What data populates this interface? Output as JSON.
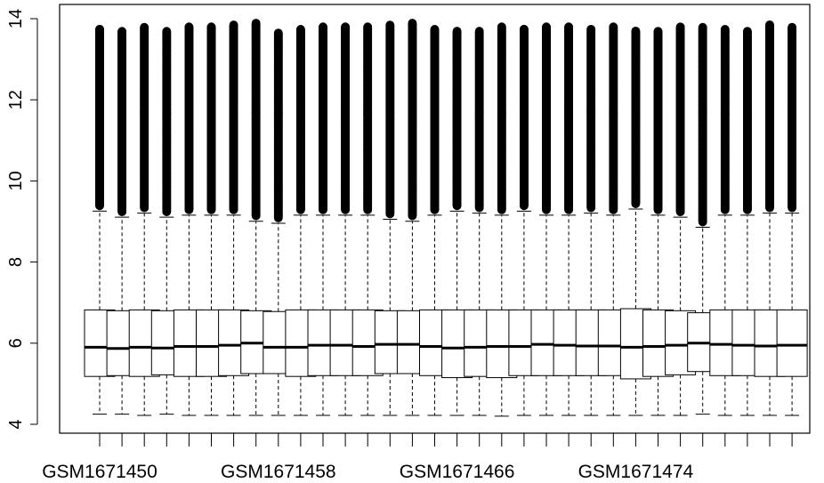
{
  "chart_data": {
    "type": "boxplot",
    "title": "",
    "xlabel": "",
    "ylabel": "",
    "ylim": [
      4,
      14
    ],
    "yticks": [
      4,
      6,
      8,
      10,
      12,
      14
    ],
    "ytick_labels": [
      "4",
      "6",
      "8",
      "10",
      "12",
      "14"
    ],
    "xtick_labels_shown": [
      "GSM1671450",
      "GSM1671458",
      "GSM1671466",
      "GSM1671474"
    ],
    "xtick_label_every": 8,
    "grid": false,
    "color": "#000000",
    "box_fill": "#ffffff",
    "boxes": [
      {
        "q1": 5.18,
        "median": 5.9,
        "q3": 6.82,
        "whisker_low": 4.25,
        "whisker_high": 9.3,
        "outlier_max": 13.75
      },
      {
        "q1": 5.2,
        "median": 5.87,
        "q3": 6.8,
        "whisker_low": 4.25,
        "whisker_high": 9.15,
        "outlier_max": 13.7
      },
      {
        "q1": 5.18,
        "median": 5.9,
        "q3": 6.82,
        "whisker_low": 4.22,
        "whisker_high": 9.25,
        "outlier_max": 13.8
      },
      {
        "q1": 5.22,
        "median": 5.88,
        "q3": 6.8,
        "whisker_low": 4.25,
        "whisker_high": 9.15,
        "outlier_max": 13.7
      },
      {
        "q1": 5.18,
        "median": 5.92,
        "q3": 6.82,
        "whisker_low": 4.22,
        "whisker_high": 9.2,
        "outlier_max": 13.8
      },
      {
        "q1": 5.18,
        "median": 5.92,
        "q3": 6.82,
        "whisker_low": 4.22,
        "whisker_high": 9.2,
        "outlier_max": 13.8
      },
      {
        "q1": 5.2,
        "median": 5.95,
        "q3": 6.82,
        "whisker_low": 4.22,
        "whisker_high": 9.2,
        "outlier_max": 13.85
      },
      {
        "q1": 5.25,
        "median": 6.0,
        "q3": 6.8,
        "whisker_low": 4.22,
        "whisker_high": 9.05,
        "outlier_max": 13.9
      },
      {
        "q1": 5.25,
        "median": 5.9,
        "q3": 6.78,
        "whisker_low": 4.22,
        "whisker_high": 9.0,
        "outlier_max": 13.65
      },
      {
        "q1": 5.18,
        "median": 5.9,
        "q3": 6.82,
        "whisker_low": 4.22,
        "whisker_high": 9.2,
        "outlier_max": 13.75
      },
      {
        "q1": 5.2,
        "median": 5.95,
        "q3": 6.82,
        "whisker_low": 4.22,
        "whisker_high": 9.2,
        "outlier_max": 13.8
      },
      {
        "q1": 5.2,
        "median": 5.95,
        "q3": 6.82,
        "whisker_low": 4.22,
        "whisker_high": 9.2,
        "outlier_max": 13.8
      },
      {
        "q1": 5.2,
        "median": 5.92,
        "q3": 6.82,
        "whisker_low": 4.22,
        "whisker_high": 9.2,
        "outlier_max": 13.8
      },
      {
        "q1": 5.25,
        "median": 5.97,
        "q3": 6.8,
        "whisker_low": 4.22,
        "whisker_high": 9.1,
        "outlier_max": 13.85
      },
      {
        "q1": 5.25,
        "median": 5.97,
        "q3": 6.8,
        "whisker_low": 4.22,
        "whisker_high": 9.05,
        "outlier_max": 13.9
      },
      {
        "q1": 5.2,
        "median": 5.92,
        "q3": 6.82,
        "whisker_low": 4.22,
        "whisker_high": 9.2,
        "outlier_max": 13.75
      },
      {
        "q1": 5.15,
        "median": 5.88,
        "q3": 6.82,
        "whisker_low": 4.22,
        "whisker_high": 9.3,
        "outlier_max": 13.7
      },
      {
        "q1": 5.18,
        "median": 5.9,
        "q3": 6.82,
        "whisker_low": 4.22,
        "whisker_high": 9.25,
        "outlier_max": 13.7
      },
      {
        "q1": 5.15,
        "median": 5.92,
        "q3": 6.82,
        "whisker_low": 4.2,
        "whisker_high": 9.2,
        "outlier_max": 13.8
      },
      {
        "q1": 5.2,
        "median": 5.92,
        "q3": 6.82,
        "whisker_low": 4.22,
        "whisker_high": 9.3,
        "outlier_max": 13.75
      },
      {
        "q1": 5.2,
        "median": 5.97,
        "q3": 6.82,
        "whisker_low": 4.22,
        "whisker_high": 9.2,
        "outlier_max": 13.8
      },
      {
        "q1": 5.2,
        "median": 5.95,
        "q3": 6.82,
        "whisker_low": 4.22,
        "whisker_high": 9.2,
        "outlier_max": 13.8
      },
      {
        "q1": 5.2,
        "median": 5.93,
        "q3": 6.82,
        "whisker_low": 4.22,
        "whisker_high": 9.25,
        "outlier_max": 13.75
      },
      {
        "q1": 5.2,
        "median": 5.93,
        "q3": 6.82,
        "whisker_low": 4.22,
        "whisker_high": 9.2,
        "outlier_max": 13.8
      },
      {
        "q1": 5.12,
        "median": 5.9,
        "q3": 6.85,
        "whisker_low": 4.22,
        "whisker_high": 9.35,
        "outlier_max": 13.7
      },
      {
        "q1": 5.18,
        "median": 5.92,
        "q3": 6.82,
        "whisker_low": 4.22,
        "whisker_high": 9.2,
        "outlier_max": 13.7
      },
      {
        "q1": 5.22,
        "median": 5.95,
        "q3": 6.8,
        "whisker_low": 4.22,
        "whisker_high": 9.15,
        "outlier_max": 13.8
      },
      {
        "q1": 5.3,
        "median": 6.0,
        "q3": 6.75,
        "whisker_low": 4.25,
        "whisker_high": 8.9,
        "outlier_max": 13.8
      },
      {
        "q1": 5.2,
        "median": 5.97,
        "q3": 6.82,
        "whisker_low": 4.22,
        "whisker_high": 9.2,
        "outlier_max": 13.75
      },
      {
        "q1": 5.2,
        "median": 5.95,
        "q3": 6.82,
        "whisker_low": 4.22,
        "whisker_high": 9.2,
        "outlier_max": 13.7
      },
      {
        "q1": 5.18,
        "median": 5.93,
        "q3": 6.82,
        "whisker_low": 4.22,
        "whisker_high": 9.25,
        "outlier_max": 13.85
      },
      {
        "q1": 5.18,
        "median": 5.95,
        "q3": 6.82,
        "whisker_low": 4.22,
        "whisker_high": 9.25,
        "outlier_max": 13.8
      }
    ]
  }
}
